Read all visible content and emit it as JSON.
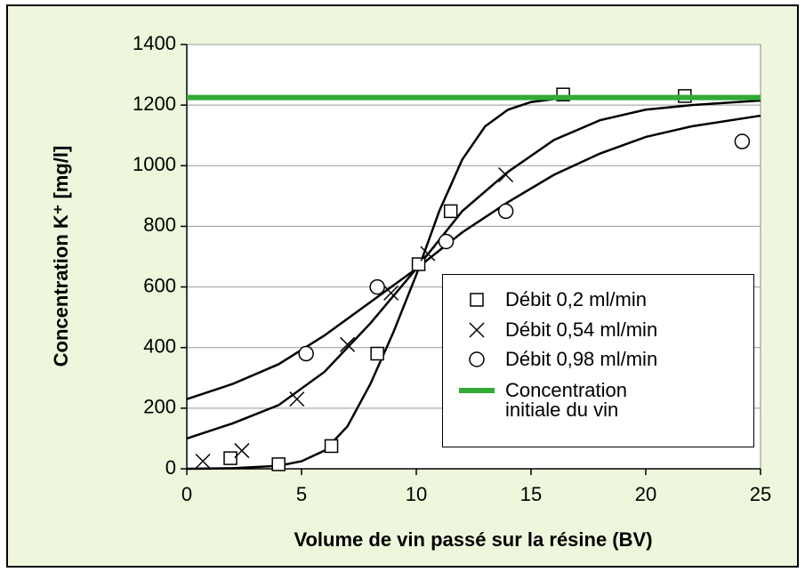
{
  "chart_data": {
    "type": "scatter",
    "xlabel": "Volume de vin passé sur la résine (BV)",
    "ylabel": "Concentration K⁺ [mg/l]",
    "xlim": [
      0,
      25
    ],
    "xticks": [
      0,
      5,
      10,
      15,
      20,
      25
    ],
    "ylim": [
      0,
      1400
    ],
    "yticks": [
      0,
      200,
      400,
      600,
      800,
      1000,
      1200,
      1400
    ],
    "grid": true,
    "legend": "lower right",
    "series": [
      {
        "name": "Débit 0,2 ml/min",
        "marker": "square",
        "color": "#000000",
        "x": [
          1.9,
          4,
          6.3,
          8.3,
          10.1,
          11.5,
          16.4,
          21.7
        ],
        "values": [
          35,
          15,
          75,
          380,
          675,
          850,
          1235,
          1230
        ]
      },
      {
        "name": "Débit 0,54 ml/min",
        "marker": "cross",
        "color": "#000000",
        "x": [
          0.7,
          2.4,
          4.8,
          7,
          8.9,
          10.5,
          13.9
        ],
        "values": [
          25,
          60,
          230,
          410,
          580,
          710,
          970
        ]
      },
      {
        "name": "Débit 0,98 ml/min",
        "marker": "circle",
        "color": "#000000",
        "x": [
          5.2,
          8.3,
          11.3,
          13.9,
          24.2
        ],
        "values": [
          380,
          600,
          750,
          850,
          1080
        ]
      },
      {
        "name": "Concentration initiale du vin",
        "marker": "hline",
        "color": "#33aa33",
        "values": [
          1225
        ]
      }
    ],
    "curves": [
      {
        "color": "#000000",
        "x": [
          0,
          2,
          4,
          5,
          6,
          7,
          8,
          9,
          10,
          11,
          12,
          13,
          14,
          15,
          16,
          18,
          25
        ],
        "values": [
          0,
          2,
          10,
          25,
          60,
          140,
          280,
          450,
          640,
          850,
          1020,
          1130,
          1185,
          1210,
          1220,
          1225,
          1225
        ]
      },
      {
        "color": "#000000",
        "x": [
          0,
          2,
          4,
          6,
          8,
          10,
          12,
          14,
          16,
          18,
          20,
          22,
          25
        ],
        "values": [
          100,
          150,
          210,
          320,
          480,
          660,
          850,
          980,
          1085,
          1150,
          1185,
          1200,
          1215
        ]
      },
      {
        "color": "#000000",
        "x": [
          0,
          2,
          4,
          6,
          8,
          10,
          12,
          14,
          16,
          18,
          20,
          22,
          25
        ],
        "values": [
          230,
          280,
          345,
          440,
          550,
          660,
          780,
          880,
          970,
          1040,
          1095,
          1130,
          1165
        ]
      }
    ]
  }
}
